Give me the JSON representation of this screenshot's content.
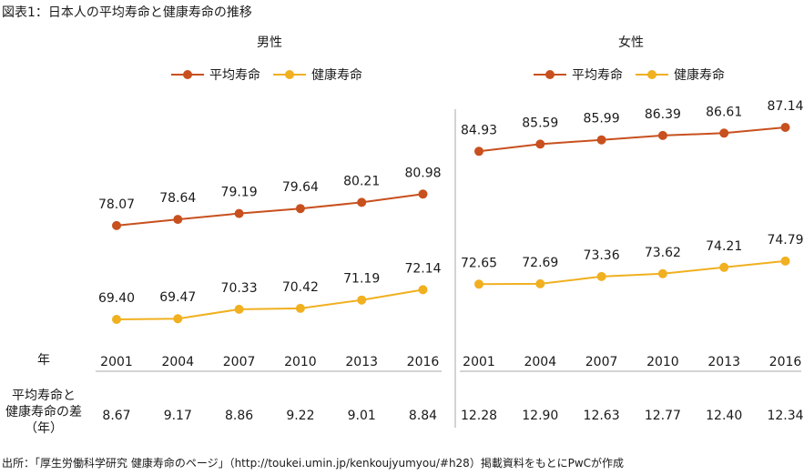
{
  "figure_title": "図表1：日本人の平均寿命と健康寿命の推移",
  "row_labels": {
    "year": "年",
    "gap_line1": "平均寿命と",
    "gap_line2": "健康寿命の差",
    "gap_line3": "（年）"
  },
  "source": "出所：「厚生労働科学研究 健康寿命のページ」（http://toukei.umin.jp/kenkoujyumyou/#h28）掲載資料をもとにPwCが作成",
  "colors": {
    "avg": "#c8501e",
    "healthy": "#f0b020",
    "divider": "#aaaaaa"
  },
  "chart_data": [
    {
      "type": "line",
      "title": "男性",
      "x": [
        "2001",
        "2004",
        "2007",
        "2010",
        "2013",
        "2016"
      ],
      "series": [
        {
          "name": "平均寿命",
          "values": [
            78.07,
            78.64,
            79.19,
            79.64,
            80.21,
            80.98
          ]
        },
        {
          "name": "健康寿命",
          "values": [
            69.4,
            69.47,
            70.33,
            70.42,
            71.19,
            72.14
          ]
        }
      ],
      "gap": [
        8.67,
        9.17,
        8.86,
        9.22,
        9.01,
        8.84
      ],
      "gap_labels": [
        "8.67",
        "9.17",
        "8.86",
        "9.22",
        "9.01",
        "8.84"
      ],
      "avg_labels": [
        "78.07",
        "78.64",
        "79.19",
        "79.64",
        "80.21",
        "80.98"
      ],
      "healthy_labels": [
        "69.40",
        "69.47",
        "70.33",
        "70.42",
        "71.19",
        "72.14"
      ],
      "legend": "top-center"
    },
    {
      "type": "line",
      "title": "女性",
      "x": [
        "2001",
        "2004",
        "2007",
        "2010",
        "2013",
        "2016"
      ],
      "series": [
        {
          "name": "平均寿命",
          "values": [
            84.93,
            85.59,
            85.99,
            86.39,
            86.61,
            87.14
          ]
        },
        {
          "name": "健康寿命",
          "values": [
            72.65,
            72.69,
            73.36,
            73.62,
            74.21,
            74.79
          ]
        }
      ],
      "gap": [
        12.28,
        12.9,
        12.63,
        12.77,
        12.4,
        12.34
      ],
      "gap_labels": [
        "12.28",
        "12.90",
        "12.63",
        "12.77",
        "12.40",
        "12.34"
      ],
      "avg_labels": [
        "84.93",
        "85.59",
        "85.99",
        "86.39",
        "86.61",
        "87.14"
      ],
      "healthy_labels": [
        "72.65",
        "72.69",
        "73.36",
        "73.62",
        "74.21",
        "74.79"
      ],
      "legend": "top-center"
    }
  ]
}
